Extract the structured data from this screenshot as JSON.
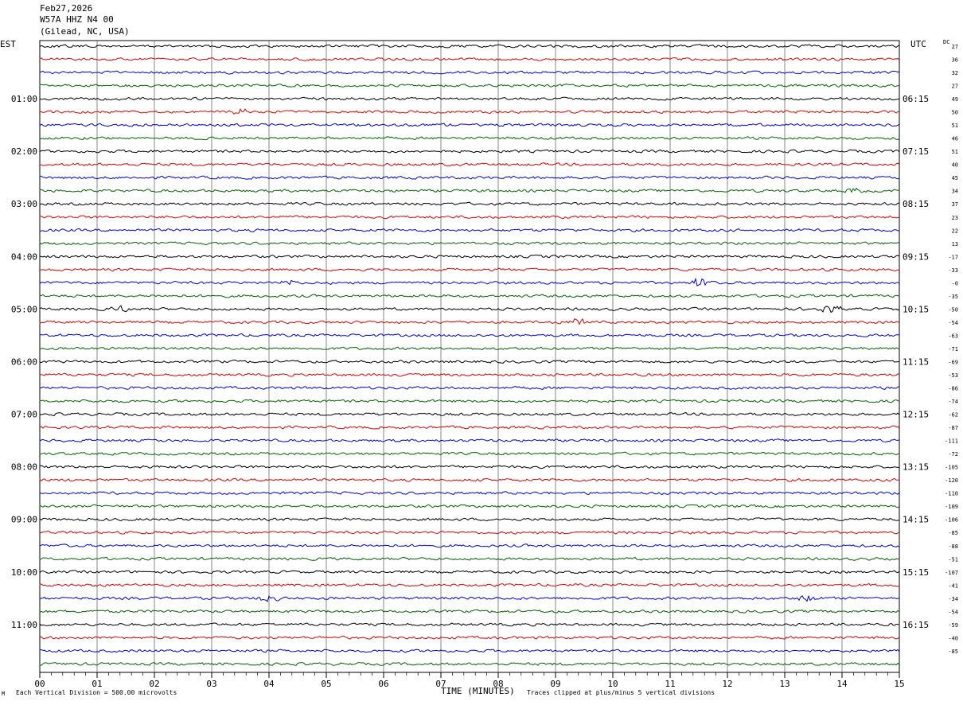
{
  "header": {
    "date": "Feb27,2026",
    "station": "W57A HHZ N4 00",
    "location": "(Gilead, NC, USA)"
  },
  "left_tz": "EST",
  "right_tz": "UTC",
  "dc_label": "DC",
  "footer": {
    "scale_note": "Each Vertical Division =  500.00 microvolts",
    "clip_note": "Traces clipped at plus/minus 5 vertical divisions",
    "logo_text": "M"
  },
  "chart_data": {
    "type": "line",
    "xlabel": "TIME (MINUTES)",
    "xlim": [
      0,
      15
    ],
    "x_ticks": [
      "00",
      "01",
      "02",
      "03",
      "04",
      "05",
      "06",
      "07",
      "08",
      "09",
      "10",
      "11",
      "12",
      "13",
      "14",
      "15"
    ],
    "trace_colors": [
      "#000000",
      "#dd0000",
      "#0000dd",
      "#006400"
    ],
    "trace_count": 48,
    "left_hour_labels": [
      "01:00",
      "02:00",
      "03:00",
      "04:00",
      "05:00",
      "06:00",
      "07:00",
      "08:00",
      "09:00",
      "10:00",
      "11:00"
    ],
    "right_hour_labels": [
      "06:15",
      "07:15",
      "08:15",
      "09:15",
      "10:15",
      "11:15",
      "12:15",
      "13:15",
      "14:15",
      "15:15",
      "16:15"
    ],
    "dc_offsets": [
      "27",
      "36",
      "32",
      "27",
      "49",
      "50",
      "51",
      "46",
      "51",
      "40",
      "45",
      "34",
      "37",
      "23",
      "22",
      "13",
      "-17",
      "-33",
      "-0",
      "-35",
      "-50",
      "-54",
      "-63",
      "-71",
      "-69",
      "-53",
      "-86",
      "-74",
      "-62",
      "-87",
      "-111",
      "-72",
      "-105",
      "-120",
      "-110",
      "-109",
      "-106",
      "-85",
      "-88",
      "-51",
      "-107",
      "-41",
      "-34",
      "-54",
      "-59",
      "-40",
      "-85"
    ],
    "events": [
      {
        "trace": 5,
        "minute": 3.5,
        "amp": 3.5
      },
      {
        "trace": 11,
        "minute": 14.2,
        "amp": 3
      },
      {
        "trace": 18,
        "minute": 4.4,
        "amp": 4
      },
      {
        "trace": 18,
        "minute": 11.5,
        "amp": 7
      },
      {
        "trace": 20,
        "minute": 1.4,
        "amp": 5
      },
      {
        "trace": 20,
        "minute": 13.8,
        "amp": 7
      },
      {
        "trace": 21,
        "minute": 9.35,
        "amp": 6
      },
      {
        "trace": 42,
        "minute": 4.0,
        "amp": 5
      },
      {
        "trace": 42,
        "minute": 13.4,
        "amp": 4
      }
    ]
  }
}
